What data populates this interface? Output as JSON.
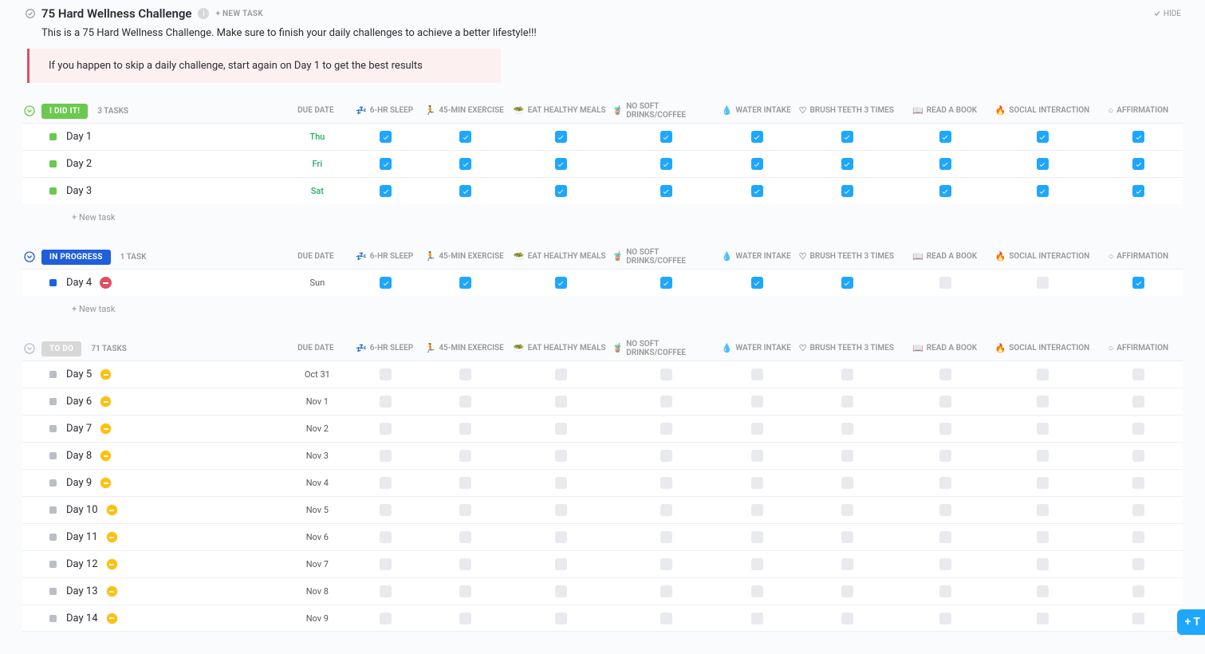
{
  "page": {
    "title": "75 Hard Wellness Challenge",
    "new_task_top": "+ NEW TASK",
    "hide": "HIDE",
    "description": "This is a 75 Hard Wellness Challenge. Make sure to finish your daily challenges to achieve a better lifestyle!!!",
    "callout": "If you happen to skip a daily challenge, start again on Day 1 to get the best results",
    "new_task_label": "+ New task",
    "fab": "+ T"
  },
  "columns": {
    "due": "DUE DATE",
    "c1": {
      "emoji": "💤",
      "label": "6-HR SLEEP"
    },
    "c2": {
      "emoji": "🏃",
      "label": "45-MIN EXERCISE"
    },
    "c3": {
      "emoji": "🥗",
      "label": "EAT HEALTHY MEALS"
    },
    "c4": {
      "emoji": "🧋",
      "label": "NO SOFT DRINKS/COFFEE"
    },
    "c5": {
      "emoji": "💧",
      "label": "WATER INTAKE"
    },
    "c6": {
      "emoji": "♡",
      "label": "BRUSH TEETH 3 TIMES"
    },
    "c7": {
      "emoji": "📖",
      "label": "READ A BOOK"
    },
    "c8": {
      "emoji": "🔥",
      "label": "SOCIAL INTERACTION"
    },
    "c9": {
      "emoji": "○",
      "label": "AFFIRMATION"
    }
  },
  "sections": [
    {
      "id": "done",
      "name": "I DID IT!",
      "pill_color": "#6bc950",
      "chev_color": "#6bc950",
      "count": "3 TASKS",
      "sq_color": "#6bc950",
      "due_class": "green",
      "show_new_task": true,
      "tasks": [
        {
          "name": "Day 1",
          "due": "Thu",
          "checks": [
            1,
            1,
            1,
            1,
            1,
            1,
            1,
            1,
            1
          ],
          "prio": ""
        },
        {
          "name": "Day 2",
          "due": "Fri",
          "checks": [
            1,
            1,
            1,
            1,
            1,
            1,
            1,
            1,
            1
          ],
          "prio": ""
        },
        {
          "name": "Day 3",
          "due": "Sat",
          "checks": [
            1,
            1,
            1,
            1,
            1,
            1,
            1,
            1,
            1
          ],
          "prio": ""
        }
      ]
    },
    {
      "id": "progress",
      "name": "IN PROGRESS",
      "pill_color": "#1f5fdc",
      "chev_color": "#1f5fdc",
      "count": "1 TASK",
      "sq_color": "#1f5fdc",
      "due_class": "grey",
      "show_new_task": true,
      "tasks": [
        {
          "name": "Day 4",
          "due": "Sun",
          "checks": [
            1,
            1,
            1,
            1,
            1,
            1,
            0,
            0,
            1
          ],
          "prio": "red"
        }
      ]
    },
    {
      "id": "todo",
      "name": "TO DO",
      "pill_color": "#d8d8d8",
      "chev_color": "#b9bec7",
      "count": "71 TASKS",
      "sq_color": "#b9bec7",
      "due_class": "grey",
      "show_new_task": false,
      "tasks": [
        {
          "name": "Day 5",
          "due": "Oct 31",
          "checks": [
            0,
            0,
            0,
            0,
            0,
            0,
            0,
            0,
            0
          ],
          "prio": "yellow"
        },
        {
          "name": "Day 6",
          "due": "Nov 1",
          "checks": [
            0,
            0,
            0,
            0,
            0,
            0,
            0,
            0,
            0
          ],
          "prio": "yellow"
        },
        {
          "name": "Day 7",
          "due": "Nov 2",
          "checks": [
            0,
            0,
            0,
            0,
            0,
            0,
            0,
            0,
            0
          ],
          "prio": "yellow"
        },
        {
          "name": "Day 8",
          "due": "Nov 3",
          "checks": [
            0,
            0,
            0,
            0,
            0,
            0,
            0,
            0,
            0
          ],
          "prio": "yellow"
        },
        {
          "name": "Day 9",
          "due": "Nov 4",
          "checks": [
            0,
            0,
            0,
            0,
            0,
            0,
            0,
            0,
            0
          ],
          "prio": "yellow"
        },
        {
          "name": "Day 10",
          "due": "Nov 5",
          "checks": [
            0,
            0,
            0,
            0,
            0,
            0,
            0,
            0,
            0
          ],
          "prio": "yellow"
        },
        {
          "name": "Day 11",
          "due": "Nov 6",
          "checks": [
            0,
            0,
            0,
            0,
            0,
            0,
            0,
            0,
            0
          ],
          "prio": "yellow"
        },
        {
          "name": "Day 12",
          "due": "Nov 7",
          "checks": [
            0,
            0,
            0,
            0,
            0,
            0,
            0,
            0,
            0
          ],
          "prio": "yellow"
        },
        {
          "name": "Day 13",
          "due": "Nov 8",
          "checks": [
            0,
            0,
            0,
            0,
            0,
            0,
            0,
            0,
            0
          ],
          "prio": "yellow"
        },
        {
          "name": "Day 14",
          "due": "Nov 9",
          "checks": [
            0,
            0,
            0,
            0,
            0,
            0,
            0,
            0,
            0
          ],
          "prio": "yellow"
        }
      ]
    }
  ]
}
